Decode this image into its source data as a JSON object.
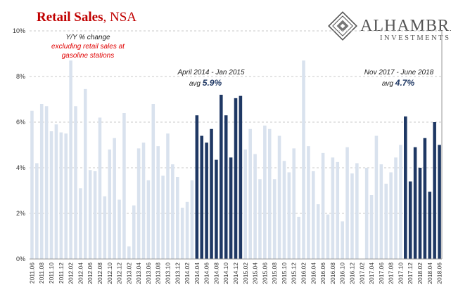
{
  "header": {
    "title_bold": "Retail Sales",
    "title_rest": ", NSA"
  },
  "logo": {
    "name": "ALHAMBRA",
    "sub": "INVESTMENTS"
  },
  "notes": {
    "note1_line1": "Y/Y % change",
    "note1_line2": "excluding retail sales at",
    "note1_line3": "gasoline stations",
    "note2_title": "April 2014 - Jan 2015",
    "note2_avg_prefix": "avg ",
    "note2_avg_value": "5.9%",
    "note3_title": "Nov 2017 - June 2018",
    "note3_avg_prefix": "avg ",
    "note3_avg_value": "4.7%"
  },
  "colors": {
    "title": "#c00000",
    "note_red": "#e00000",
    "note_dark": "#1f3864",
    "bar_light": "#d9e2ee",
    "bar_dark": "#1f3864",
    "logo": "#555555"
  },
  "chart_data": {
    "type": "bar",
    "ylim": [
      0,
      10
    ],
    "yticks": [
      "0%",
      "2%",
      "4%",
      "6%",
      "8%",
      "10%"
    ],
    "ytick_values": [
      0,
      2,
      4,
      6,
      8,
      10
    ],
    "categories": [
      "2011.06",
      "2011.07",
      "2011.08",
      "2011.09",
      "2011.10",
      "2011.11",
      "2011.12",
      "2012.01",
      "2012.02",
      "2012.03",
      "2012.04",
      "2012.05",
      "2012.06",
      "2012.07",
      "2012.08",
      "2012.09",
      "2012.10",
      "2012.11",
      "2012.12",
      "2013.01",
      "2013.02",
      "2013.03",
      "2013.04",
      "2013.05",
      "2013.06",
      "2013.07",
      "2013.08",
      "2013.09",
      "2013.10",
      "2013.11",
      "2013.12",
      "2014.01",
      "2014.02",
      "2014.03",
      "2014.04",
      "2014.05",
      "2014.06",
      "2014.07",
      "2014.08",
      "2014.09",
      "2014.10",
      "2014.11",
      "2014.12",
      "2015.01",
      "2015.02",
      "2015.03",
      "2015.04",
      "2015.05",
      "2015.06",
      "2015.07",
      "2015.08",
      "2015.09",
      "2015.10",
      "2015.11",
      "2015.12",
      "2016.01",
      "2016.02",
      "2016.03",
      "2016.04",
      "2016.05",
      "2016.06",
      "2016.07",
      "2016.08",
      "2016.09",
      "2016.10",
      "2016.11",
      "2016.12",
      "2017.01",
      "2017.02",
      "2017.03",
      "2017.04",
      "2017.05",
      "2017.06",
      "2017.07",
      "2017.08",
      "2017.09",
      "2017.10",
      "2017.11",
      "2017.12",
      "2018.01",
      "2018.02",
      "2018.03",
      "2018.04",
      "2018.05",
      "2018.06"
    ],
    "xtick_labels": [
      "2011.06",
      "2011.08",
      "2011.10",
      "2011.12",
      "2012.02",
      "2012.04",
      "2012.06",
      "2012.08",
      "2012.10",
      "2012.12",
      "2013.02",
      "2013.04",
      "2013.06",
      "2013.08",
      "2013.10",
      "2013.12",
      "2014.02",
      "2014.04",
      "2014.06",
      "2014.08",
      "2014.10",
      "2014.12",
      "2015.02",
      "2015.04",
      "2015.06",
      "2015.08",
      "2015.10",
      "2015.12",
      "2016.02",
      "2016.04",
      "2016.06",
      "2016.08",
      "2016.10",
      "2016.12",
      "2017.02",
      "2017.04",
      "2017.06",
      "2017.08",
      "2017.10",
      "2017.12",
      "2018.02",
      "2018.04",
      "2018.06"
    ],
    "values": [
      6.5,
      4.2,
      6.8,
      6.7,
      5.6,
      5.9,
      5.55,
      5.5,
      8.7,
      6.7,
      3.1,
      7.45,
      3.9,
      3.85,
      6.2,
      2.75,
      4.8,
      5.3,
      2.6,
      6.4,
      0.55,
      2.35,
      4.85,
      5.1,
      3.45,
      6.8,
      4.95,
      3.65,
      5.5,
      4.15,
      3.6,
      2.25,
      2.5,
      3.45,
      6.3,
      5.4,
      5.1,
      5.7,
      4.35,
      7.2,
      6.3,
      4.45,
      7.05,
      7.15,
      4.8,
      5.7,
      4.6,
      3.5,
      5.85,
      5.7,
      3.5,
      5.4,
      4.3,
      3.8,
      4.85,
      1.85,
      8.7,
      4.95,
      3.85,
      2.4,
      4.65,
      1.95,
      4.45,
      4.25,
      1.65,
      4.9,
      3.75,
      4.2,
      0,
      4.0,
      2.8,
      5.4,
      4.15,
      3.3,
      3.8,
      4.45,
      5.0,
      6.25,
      3.4,
      4.9,
      4.0,
      5.3,
      2.95,
      6.0,
      5.0
    ],
    "highlight_ranges": [
      {
        "start": "2014.04",
        "end": "2015.01",
        "avg": 5.9
      },
      {
        "start": "2017.11",
        "end": "2018.06",
        "avg": 4.7
      }
    ],
    "grid": true,
    "grid_style": "dashed"
  }
}
